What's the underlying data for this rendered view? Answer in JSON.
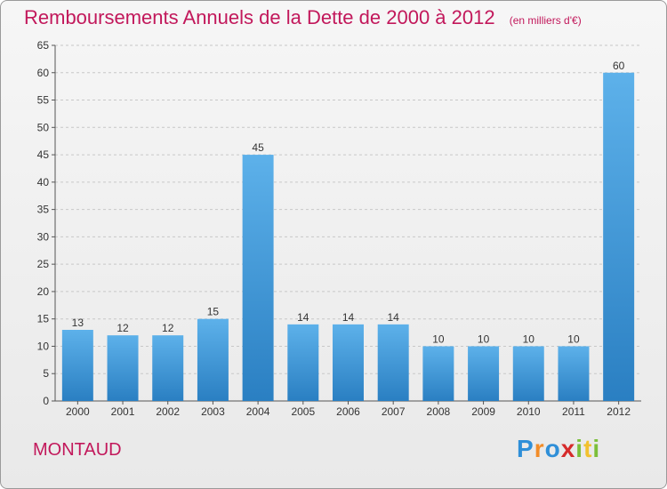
{
  "chart_data": {
    "type": "bar",
    "title": "Remboursements Annuels de la Dette de 2000 à 2012",
    "subtitle": "(en milliers d'€)",
    "categories": [
      "2000",
      "2001",
      "2002",
      "2003",
      "2004",
      "2005",
      "2006",
      "2007",
      "2008",
      "2009",
      "2010",
      "2011",
      "2012"
    ],
    "values": [
      13,
      12,
      12,
      15,
      45,
      14,
      14,
      14,
      10,
      10,
      10,
      10,
      60
    ],
    "ylim": [
      0,
      65
    ],
    "yticks": [
      0,
      5,
      10,
      15,
      20,
      25,
      30,
      35,
      40,
      45,
      50,
      55,
      60,
      65
    ],
    "grid": true,
    "bar_color": "#3a9ee0"
  },
  "footer": {
    "commune": "MONTAUD",
    "logo": "Proxiti"
  }
}
